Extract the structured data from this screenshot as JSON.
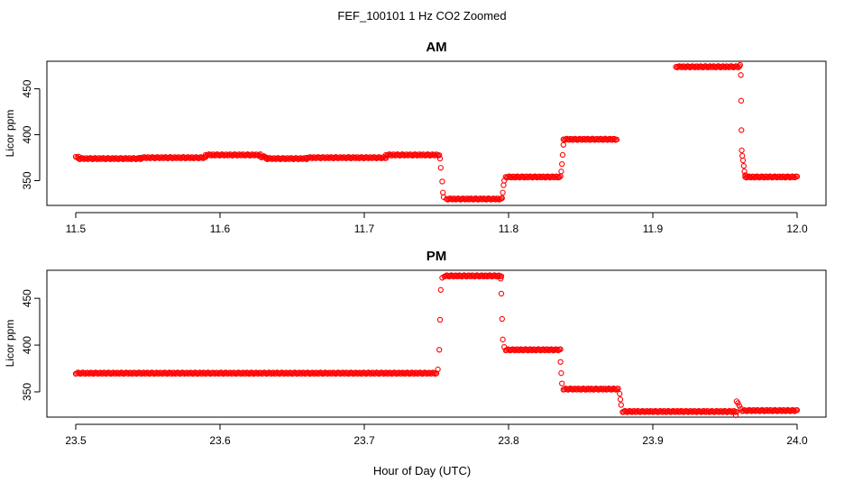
{
  "title": "FEF_100101  1 Hz CO2 Zoomed",
  "xlabel": "Hour of Day (UTC)",
  "point_color": "#ff0000",
  "chart_data": [
    {
      "type": "scatter",
      "title": "AM",
      "ylabel": "Licor ppm",
      "xlim": [
        11.48,
        12.02
      ],
      "ylim": [
        323,
        480
      ],
      "xticks": [
        11.5,
        11.6,
        11.7,
        11.8,
        11.9,
        12.0
      ],
      "xtick_labels": [
        "11.5",
        "11.6",
        "11.7",
        "11.8",
        "11.9",
        "12.0"
      ],
      "yticks": [
        350,
        400,
        450
      ],
      "ytick_labels": [
        "350",
        "400",
        "450"
      ],
      "segments": [
        {
          "x": [
            11.5,
            11.502
          ],
          "y": 376
        },
        {
          "x": [
            11.502,
            11.545
          ],
          "y": 374
        },
        {
          "x": [
            11.545,
            11.59
          ],
          "y": 375
        },
        {
          "x": [
            11.59,
            11.628
          ],
          "y": 378
        },
        {
          "x": [
            11.628,
            11.632
          ],
          "y": 376
        },
        {
          "x": [
            11.632,
            11.66
          ],
          "y": 374
        },
        {
          "x": [
            11.66,
            11.715
          ],
          "y": 375
        },
        {
          "x": [
            11.715,
            11.752
          ],
          "y": 378
        },
        {
          "x": [
            11.757,
            11.795
          ],
          "y": 330
        },
        {
          "x": [
            11.798,
            11.836
          ],
          "y": 354
        },
        {
          "x": [
            11.838,
            11.875
          ],
          "y": 395
        },
        {
          "x": [
            11.916,
            11.96
          ],
          "y": 474
        },
        {
          "x": [
            11.964,
            12.0
          ],
          "y": 354
        }
      ],
      "scattered_points": [
        {
          "x": 11.7525,
          "y": 374
        },
        {
          "x": 11.753,
          "y": 364
        },
        {
          "x": 11.754,
          "y": 349
        },
        {
          "x": 11.7545,
          "y": 337
        },
        {
          "x": 11.755,
          "y": 332
        },
        {
          "x": 11.7955,
          "y": 331
        },
        {
          "x": 11.796,
          "y": 337
        },
        {
          "x": 11.7965,
          "y": 345
        },
        {
          "x": 11.797,
          "y": 350
        },
        {
          "x": 11.8365,
          "y": 360
        },
        {
          "x": 11.837,
          "y": 368
        },
        {
          "x": 11.8375,
          "y": 378
        },
        {
          "x": 11.838,
          "y": 389
        },
        {
          "x": 11.9605,
          "y": 476
        },
        {
          "x": 11.961,
          "y": 465
        },
        {
          "x": 11.9612,
          "y": 437
        },
        {
          "x": 11.9614,
          "y": 405
        },
        {
          "x": 11.9616,
          "y": 383
        },
        {
          "x": 11.962,
          "y": 377
        },
        {
          "x": 11.9625,
          "y": 372
        },
        {
          "x": 11.963,
          "y": 366
        },
        {
          "x": 11.9635,
          "y": 360
        },
        {
          "x": 11.964,
          "y": 356
        }
      ]
    },
    {
      "type": "scatter",
      "title": "PM",
      "ylabel": "Licor ppm",
      "xlim": [
        23.48,
        24.02
      ],
      "ylim": [
        323,
        480
      ],
      "xticks": [
        23.5,
        23.6,
        23.7,
        23.8,
        23.9,
        24.0
      ],
      "xtick_labels": [
        "23.5",
        "23.6",
        "23.7",
        "23.8",
        "23.9",
        "24.0"
      ],
      "yticks": [
        350,
        400,
        450
      ],
      "ytick_labels": [
        "350",
        "400",
        "450"
      ],
      "segments": [
        {
          "x": [
            23.5,
            23.75
          ],
          "y": 370
        },
        {
          "x": [
            23.7555,
            23.795
          ],
          "y": 474
        },
        {
          "x": [
            23.798,
            23.836
          ],
          "y": 395
        },
        {
          "x": [
            23.838,
            23.876
          ],
          "y": 353
        },
        {
          "x": [
            23.879,
            23.958
          ],
          "y": 329
        },
        {
          "x": [
            23.962,
            24.0
          ],
          "y": 330
        }
      ],
      "scattered_points": [
        {
          "x": 23.751,
          "y": 374
        },
        {
          "x": 23.752,
          "y": 395
        },
        {
          "x": 23.7525,
          "y": 427
        },
        {
          "x": 23.753,
          "y": 459
        },
        {
          "x": 23.754,
          "y": 472
        },
        {
          "x": 23.7945,
          "y": 471
        },
        {
          "x": 23.795,
          "y": 455
        },
        {
          "x": 23.7955,
          "y": 428
        },
        {
          "x": 23.796,
          "y": 406
        },
        {
          "x": 23.797,
          "y": 398
        },
        {
          "x": 23.836,
          "y": 382
        },
        {
          "x": 23.8365,
          "y": 370
        },
        {
          "x": 23.837,
          "y": 359
        },
        {
          "x": 23.877,
          "y": 348
        },
        {
          "x": 23.8775,
          "y": 342
        },
        {
          "x": 23.878,
          "y": 336
        },
        {
          "x": 23.9575,
          "y": 325
        },
        {
          "x": 23.958,
          "y": 340
        },
        {
          "x": 23.959,
          "y": 338
        },
        {
          "x": 23.96,
          "y": 335
        },
        {
          "x": 23.961,
          "y": 332
        }
      ]
    }
  ]
}
